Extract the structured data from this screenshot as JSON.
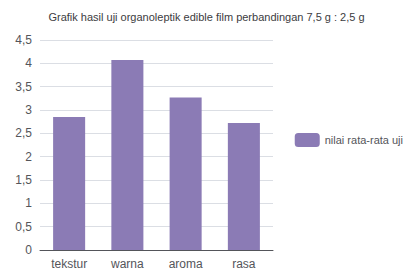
{
  "chart_data": {
    "type": "bar",
    "title": "Grafik hasil uji organoleptik edible film perbandingan 7,5 g : 2,5 g",
    "categories": [
      "tekstur",
      "warna",
      "aroma",
      "rasa"
    ],
    "series": [
      {
        "name": "nilai rata-rata uji",
        "color": "#8B7BB5",
        "values": [
          2.85,
          4.07,
          3.27,
          2.72
        ]
      }
    ],
    "ylim": [
      0,
      4.5
    ],
    "yticks": [
      0,
      {
        "value": 0.5,
        "label": "0,5"
      },
      1,
      {
        "value": 1.5,
        "label": "1,5"
      },
      2,
      {
        "value": 2.5,
        "label": "2,5"
      },
      3,
      {
        "value": 3.5,
        "label": "3,5"
      },
      4,
      {
        "value": 4.5,
        "label": "4,5"
      }
    ],
    "grid": true,
    "legend": "right"
  }
}
